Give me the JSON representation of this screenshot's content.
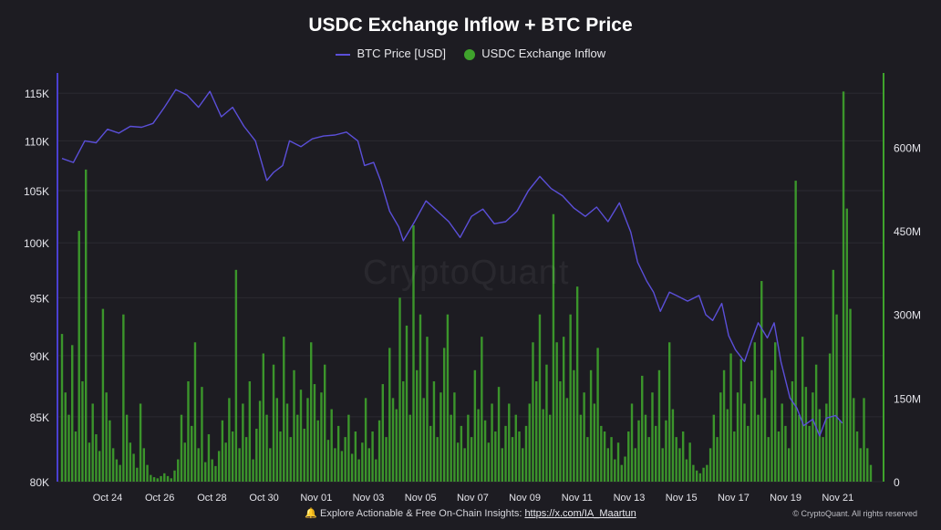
{
  "chart_data": {
    "type": "bar+line",
    "title": "USDC Exchange Inflow + BTC Price",
    "legend_position": "top-center",
    "series": [
      {
        "name": "BTC Price [USD]",
        "type": "line",
        "axis": "left",
        "color": "#5b4fd9"
      },
      {
        "name": "USDC Exchange Inflow",
        "type": "bar",
        "axis": "right",
        "color": "#3fa32c"
      }
    ],
    "x_tick_labels": [
      "Oct 24",
      "Oct 26",
      "Oct 28",
      "Oct 30",
      "Nov 01",
      "Nov 03",
      "Nov 05",
      "Nov 07",
      "Nov 09",
      "Nov 11",
      "Nov 13",
      "Nov 15",
      "Nov 17",
      "Nov 19",
      "Nov 21"
    ],
    "x_range_days": [
      -0.5,
      31.6
    ],
    "y_left": {
      "ticks": [
        80000,
        85000,
        90000,
        95000,
        100000,
        105000,
        110000,
        115000
      ],
      "tick_labels": [
        "80K",
        "85K",
        "90K",
        "95K",
        "100K",
        "105K",
        "110K",
        "115K"
      ],
      "scale": "log",
      "range": [
        80000,
        117000
      ]
    },
    "y_right": {
      "ticks": [
        0,
        150000000,
        300000000,
        450000000,
        600000000
      ],
      "tick_labels": [
        "0",
        "150M",
        "300M",
        "450M",
        "600M"
      ],
      "range": [
        0,
        730000000
      ]
    },
    "grid": true,
    "btc_price": [
      [
        0,
        108200
      ],
      [
        0.5,
        107800
      ],
      [
        1,
        110000
      ],
      [
        1.5,
        109800
      ],
      [
        2,
        111200
      ],
      [
        2.5,
        110800
      ],
      [
        3,
        111500
      ],
      [
        3.5,
        111400
      ],
      [
        4,
        111800
      ],
      [
        4.5,
        113500
      ],
      [
        5,
        115400
      ],
      [
        5.5,
        114800
      ],
      [
        6,
        113500
      ],
      [
        6.5,
        115200
      ],
      [
        7,
        112500
      ],
      [
        7.5,
        113500
      ],
      [
        8,
        111500
      ],
      [
        8.5,
        110000
      ],
      [
        9,
        106000
      ],
      [
        9.3,
        106800
      ],
      [
        9.7,
        107500
      ],
      [
        10,
        110000
      ],
      [
        10.5,
        109400
      ],
      [
        11,
        110200
      ],
      [
        11.5,
        110500
      ],
      [
        12,
        110600
      ],
      [
        12.5,
        110900
      ],
      [
        13,
        110000
      ],
      [
        13.3,
        107500
      ],
      [
        13.7,
        107800
      ],
      [
        14,
        106000
      ],
      [
        14.4,
        103000
      ],
      [
        14.8,
        101500
      ],
      [
        15,
        100200
      ],
      [
        15.5,
        102000
      ],
      [
        16,
        104000
      ],
      [
        16.5,
        103000
      ],
      [
        17,
        102000
      ],
      [
        17.5,
        100500
      ],
      [
        18,
        102500
      ],
      [
        18.5,
        103200
      ],
      [
        19,
        101800
      ],
      [
        19.5,
        102000
      ],
      [
        20,
        103000
      ],
      [
        20.5,
        105000
      ],
      [
        21,
        106400
      ],
      [
        21.5,
        105200
      ],
      [
        22,
        104500
      ],
      [
        22.5,
        103300
      ],
      [
        23,
        102500
      ],
      [
        23.5,
        103400
      ],
      [
        24,
        102000
      ],
      [
        24.5,
        103800
      ],
      [
        25,
        101000
      ],
      [
        25.3,
        98200
      ],
      [
        25.7,
        96500
      ],
      [
        26,
        95500
      ],
      [
        26.3,
        93800
      ],
      [
        26.7,
        95500
      ],
      [
        27,
        95200
      ],
      [
        27.5,
        94700
      ],
      [
        28,
        95200
      ],
      [
        28.3,
        93500
      ],
      [
        28.6,
        93000
      ],
      [
        29,
        94500
      ],
      [
        29.3,
        91700
      ],
      [
        29.6,
        90500
      ],
      [
        30,
        89500
      ],
      [
        30.3,
        91200
      ],
      [
        30.6,
        92800
      ],
      [
        31,
        91500
      ],
      [
        31.3,
        92800
      ],
      [
        31.6,
        89500
      ],
      [
        32,
        86500
      ],
      [
        32.3,
        85700
      ],
      [
        32.6,
        84300
      ],
      [
        33,
        84800
      ],
      [
        33.3,
        83500
      ],
      [
        33.6,
        84900
      ],
      [
        34,
        85100
      ],
      [
        34.3,
        84500
      ]
    ],
    "usdc_exchange_inflow": [
      [
        0.0,
        265000000
      ],
      [
        0.15,
        160000000
      ],
      [
        0.3,
        120000000
      ],
      [
        0.45,
        245000000
      ],
      [
        0.6,
        90000000
      ],
      [
        0.75,
        450000000
      ],
      [
        0.9,
        180000000
      ],
      [
        1.05,
        560000000
      ],
      [
        1.2,
        70000000
      ],
      [
        1.35,
        140000000
      ],
      [
        1.5,
        85000000
      ],
      [
        1.65,
        55000000
      ],
      [
        1.8,
        310000000
      ],
      [
        1.95,
        160000000
      ],
      [
        2.1,
        110000000
      ],
      [
        2.25,
        60000000
      ],
      [
        2.4,
        40000000
      ],
      [
        2.55,
        30000000
      ],
      [
        2.7,
        300000000
      ],
      [
        2.85,
        120000000
      ],
      [
        3.0,
        70000000
      ],
      [
        3.15,
        50000000
      ],
      [
        3.3,
        25000000
      ],
      [
        3.45,
        140000000
      ],
      [
        3.6,
        60000000
      ],
      [
        3.75,
        30000000
      ],
      [
        3.9,
        12000000
      ],
      [
        4.05,
        8000000
      ],
      [
        4.2,
        6000000
      ],
      [
        4.35,
        10000000
      ],
      [
        4.5,
        15000000
      ],
      [
        4.65,
        10000000
      ],
      [
        4.8,
        6000000
      ],
      [
        4.95,
        20000000
      ],
      [
        5.1,
        40000000
      ],
      [
        5.25,
        120000000
      ],
      [
        5.4,
        70000000
      ],
      [
        5.55,
        180000000
      ],
      [
        5.7,
        100000000
      ],
      [
        5.85,
        250000000
      ],
      [
        6.0,
        60000000
      ],
      [
        6.15,
        170000000
      ],
      [
        6.3,
        35000000
      ],
      [
        6.45,
        85000000
      ],
      [
        6.6,
        40000000
      ],
      [
        6.75,
        28000000
      ],
      [
        6.9,
        55000000
      ],
      [
        7.05,
        110000000
      ],
      [
        7.2,
        70000000
      ],
      [
        7.35,
        150000000
      ],
      [
        7.5,
        90000000
      ],
      [
        7.65,
        380000000
      ],
      [
        7.8,
        60000000
      ],
      [
        7.95,
        140000000
      ],
      [
        8.1,
        80000000
      ],
      [
        8.25,
        180000000
      ],
      [
        8.4,
        40000000
      ],
      [
        8.55,
        95000000
      ],
      [
        8.7,
        145000000
      ],
      [
        8.85,
        230000000
      ],
      [
        9.0,
        120000000
      ],
      [
        9.15,
        60000000
      ],
      [
        9.3,
        210000000
      ],
      [
        9.45,
        150000000
      ],
      [
        9.6,
        90000000
      ],
      [
        9.75,
        260000000
      ],
      [
        9.9,
        140000000
      ],
      [
        10.05,
        80000000
      ],
      [
        10.2,
        200000000
      ],
      [
        10.35,
        120000000
      ],
      [
        10.5,
        165000000
      ],
      [
        10.65,
        95000000
      ],
      [
        10.8,
        150000000
      ],
      [
        10.95,
        250000000
      ],
      [
        11.1,
        175000000
      ],
      [
        11.25,
        110000000
      ],
      [
        11.4,
        160000000
      ],
      [
        11.55,
        210000000
      ],
      [
        11.7,
        75000000
      ],
      [
        11.85,
        130000000
      ],
      [
        12.0,
        60000000
      ],
      [
        12.15,
        100000000
      ],
      [
        12.3,
        55000000
      ],
      [
        12.45,
        80000000
      ],
      [
        12.6,
        120000000
      ],
      [
        12.75,
        50000000
      ],
      [
        12.9,
        90000000
      ],
      [
        13.05,
        40000000
      ],
      [
        13.2,
        70000000
      ],
      [
        13.35,
        150000000
      ],
      [
        13.5,
        60000000
      ],
      [
        13.65,
        90000000
      ],
      [
        13.8,
        40000000
      ],
      [
        13.95,
        110000000
      ],
      [
        14.1,
        175000000
      ],
      [
        14.25,
        80000000
      ],
      [
        14.4,
        240000000
      ],
      [
        14.55,
        150000000
      ],
      [
        14.7,
        130000000
      ],
      [
        14.85,
        330000000
      ],
      [
        15.0,
        180000000
      ],
      [
        15.15,
        280000000
      ],
      [
        15.3,
        120000000
      ],
      [
        15.45,
        460000000
      ],
      [
        15.6,
        200000000
      ],
      [
        15.75,
        300000000
      ],
      [
        15.9,
        150000000
      ],
      [
        16.05,
        260000000
      ],
      [
        16.2,
        100000000
      ],
      [
        16.35,
        180000000
      ],
      [
        16.5,
        80000000
      ],
      [
        16.65,
        160000000
      ],
      [
        16.8,
        240000000
      ],
      [
        16.95,
        300000000
      ],
      [
        17.1,
        120000000
      ],
      [
        17.25,
        160000000
      ],
      [
        17.4,
        70000000
      ],
      [
        17.55,
        100000000
      ],
      [
        17.7,
        60000000
      ],
      [
        17.85,
        120000000
      ],
      [
        18.0,
        80000000
      ],
      [
        18.15,
        200000000
      ],
      [
        18.3,
        130000000
      ],
      [
        18.45,
        260000000
      ],
      [
        18.6,
        110000000
      ],
      [
        18.75,
        70000000
      ],
      [
        18.9,
        140000000
      ],
      [
        19.05,
        90000000
      ],
      [
        19.2,
        170000000
      ],
      [
        19.35,
        60000000
      ],
      [
        19.5,
        100000000
      ],
      [
        19.65,
        140000000
      ],
      [
        19.8,
        80000000
      ],
      [
        19.95,
        120000000
      ],
      [
        20.1,
        90000000
      ],
      [
        20.25,
        60000000
      ],
      [
        20.4,
        100000000
      ],
      [
        20.55,
        140000000
      ],
      [
        20.7,
        250000000
      ],
      [
        20.85,
        180000000
      ],
      [
        21.0,
        300000000
      ],
      [
        21.15,
        130000000
      ],
      [
        21.3,
        210000000
      ],
      [
        21.45,
        120000000
      ],
      [
        21.6,
        480000000
      ],
      [
        21.75,
        250000000
      ],
      [
        21.9,
        180000000
      ],
      [
        22.05,
        260000000
      ],
      [
        22.2,
        150000000
      ],
      [
        22.35,
        300000000
      ],
      [
        22.5,
        200000000
      ],
      [
        22.65,
        350000000
      ],
      [
        22.8,
        120000000
      ],
      [
        22.95,
        160000000
      ],
      [
        23.1,
        80000000
      ],
      [
        23.25,
        200000000
      ],
      [
        23.4,
        140000000
      ],
      [
        23.55,
        240000000
      ],
      [
        23.7,
        100000000
      ],
      [
        23.85,
        90000000
      ],
      [
        24.0,
        60000000
      ],
      [
        24.15,
        80000000
      ],
      [
        24.3,
        40000000
      ],
      [
        24.45,
        70000000
      ],
      [
        24.6,
        30000000
      ],
      [
        24.75,
        45000000
      ],
      [
        24.9,
        90000000
      ],
      [
        25.05,
        140000000
      ],
      [
        25.2,
        60000000
      ],
      [
        25.35,
        110000000
      ],
      [
        25.5,
        190000000
      ],
      [
        25.65,
        120000000
      ],
      [
        25.8,
        80000000
      ],
      [
        25.95,
        160000000
      ],
      [
        26.1,
        100000000
      ],
      [
        26.25,
        200000000
      ],
      [
        26.4,
        60000000
      ],
      [
        26.55,
        110000000
      ],
      [
        26.7,
        250000000
      ],
      [
        26.85,
        130000000
      ],
      [
        27.0,
        80000000
      ],
      [
        27.15,
        60000000
      ],
      [
        27.3,
        90000000
      ],
      [
        27.45,
        40000000
      ],
      [
        27.6,
        70000000
      ],
      [
        27.75,
        30000000
      ],
      [
        27.9,
        20000000
      ],
      [
        28.05,
        15000000
      ],
      [
        28.2,
        25000000
      ],
      [
        28.35,
        30000000
      ],
      [
        28.5,
        60000000
      ],
      [
        28.65,
        120000000
      ],
      [
        28.8,
        80000000
      ],
      [
        28.95,
        160000000
      ],
      [
        29.1,
        200000000
      ],
      [
        29.25,
        130000000
      ],
      [
        29.4,
        230000000
      ],
      [
        29.55,
        90000000
      ],
      [
        29.7,
        160000000
      ],
      [
        29.85,
        220000000
      ],
      [
        30.0,
        140000000
      ],
      [
        30.15,
        100000000
      ],
      [
        30.3,
        180000000
      ],
      [
        30.45,
        250000000
      ],
      [
        30.6,
        120000000
      ],
      [
        30.75,
        360000000
      ],
      [
        30.9,
        150000000
      ],
      [
        31.05,
        80000000
      ],
      [
        31.2,
        200000000
      ],
      [
        31.35,
        250000000
      ],
      [
        31.5,
        90000000
      ],
      [
        31.65,
        140000000
      ],
      [
        31.8,
        100000000
      ],
      [
        31.95,
        60000000
      ],
      [
        32.1,
        180000000
      ],
      [
        32.25,
        540000000
      ],
      [
        32.4,
        120000000
      ],
      [
        32.55,
        260000000
      ],
      [
        32.7,
        170000000
      ],
      [
        32.85,
        100000000
      ],
      [
        33.0,
        160000000
      ],
      [
        33.15,
        210000000
      ],
      [
        33.3,
        130000000
      ],
      [
        33.45,
        80000000
      ],
      [
        33.6,
        140000000
      ],
      [
        33.75,
        230000000
      ],
      [
        33.9,
        380000000
      ],
      [
        34.05,
        300000000
      ],
      [
        34.2,
        110000000
      ],
      [
        34.35,
        700000000
      ],
      [
        34.5,
        490000000
      ],
      [
        34.65,
        310000000
      ],
      [
        34.8,
        150000000
      ],
      [
        34.95,
        90000000
      ],
      [
        35.1,
        60000000
      ],
      [
        35.25,
        150000000
      ],
      [
        35.4,
        60000000
      ],
      [
        35.55,
        30000000
      ]
    ]
  },
  "watermark": "CryptoQuant",
  "footer": {
    "bell_icon": "bell-icon",
    "text": "Explore Actionable & Free On-Chain Insights:",
    "link": "https://x.com/IA_Maartun",
    "copyright": "© CryptoQuant. All rights reserved"
  }
}
